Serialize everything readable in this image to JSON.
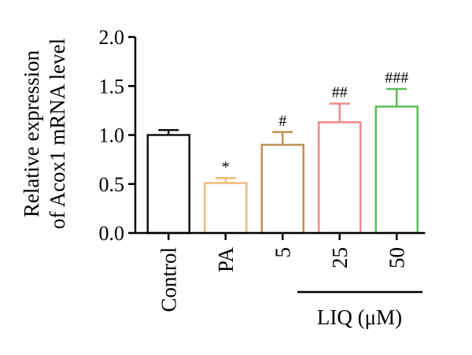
{
  "chart_data": {
    "type": "bar",
    "ylabel_lines": [
      "Relative expression",
      "of Acox1 mRNA level"
    ],
    "ylim": [
      0,
      2
    ],
    "yticks": [
      "0.0",
      "0.5",
      "1.0",
      "1.5",
      "2.0"
    ],
    "categories": [
      "Control",
      "PA",
      "5",
      "25",
      "50"
    ],
    "values": [
      1.0,
      0.51,
      0.9,
      1.13,
      1.29
    ],
    "errors": [
      0.05,
      0.05,
      0.13,
      0.19,
      0.18
    ],
    "significance": [
      "",
      "*",
      "#",
      "##",
      "###"
    ],
    "colors": [
      "#111111",
      "#f3b97a",
      "#c0914f",
      "#ee8a8a",
      "#5cbd5a"
    ],
    "group_label": "LIQ (μM)",
    "grid": false,
    "legend": "none"
  }
}
